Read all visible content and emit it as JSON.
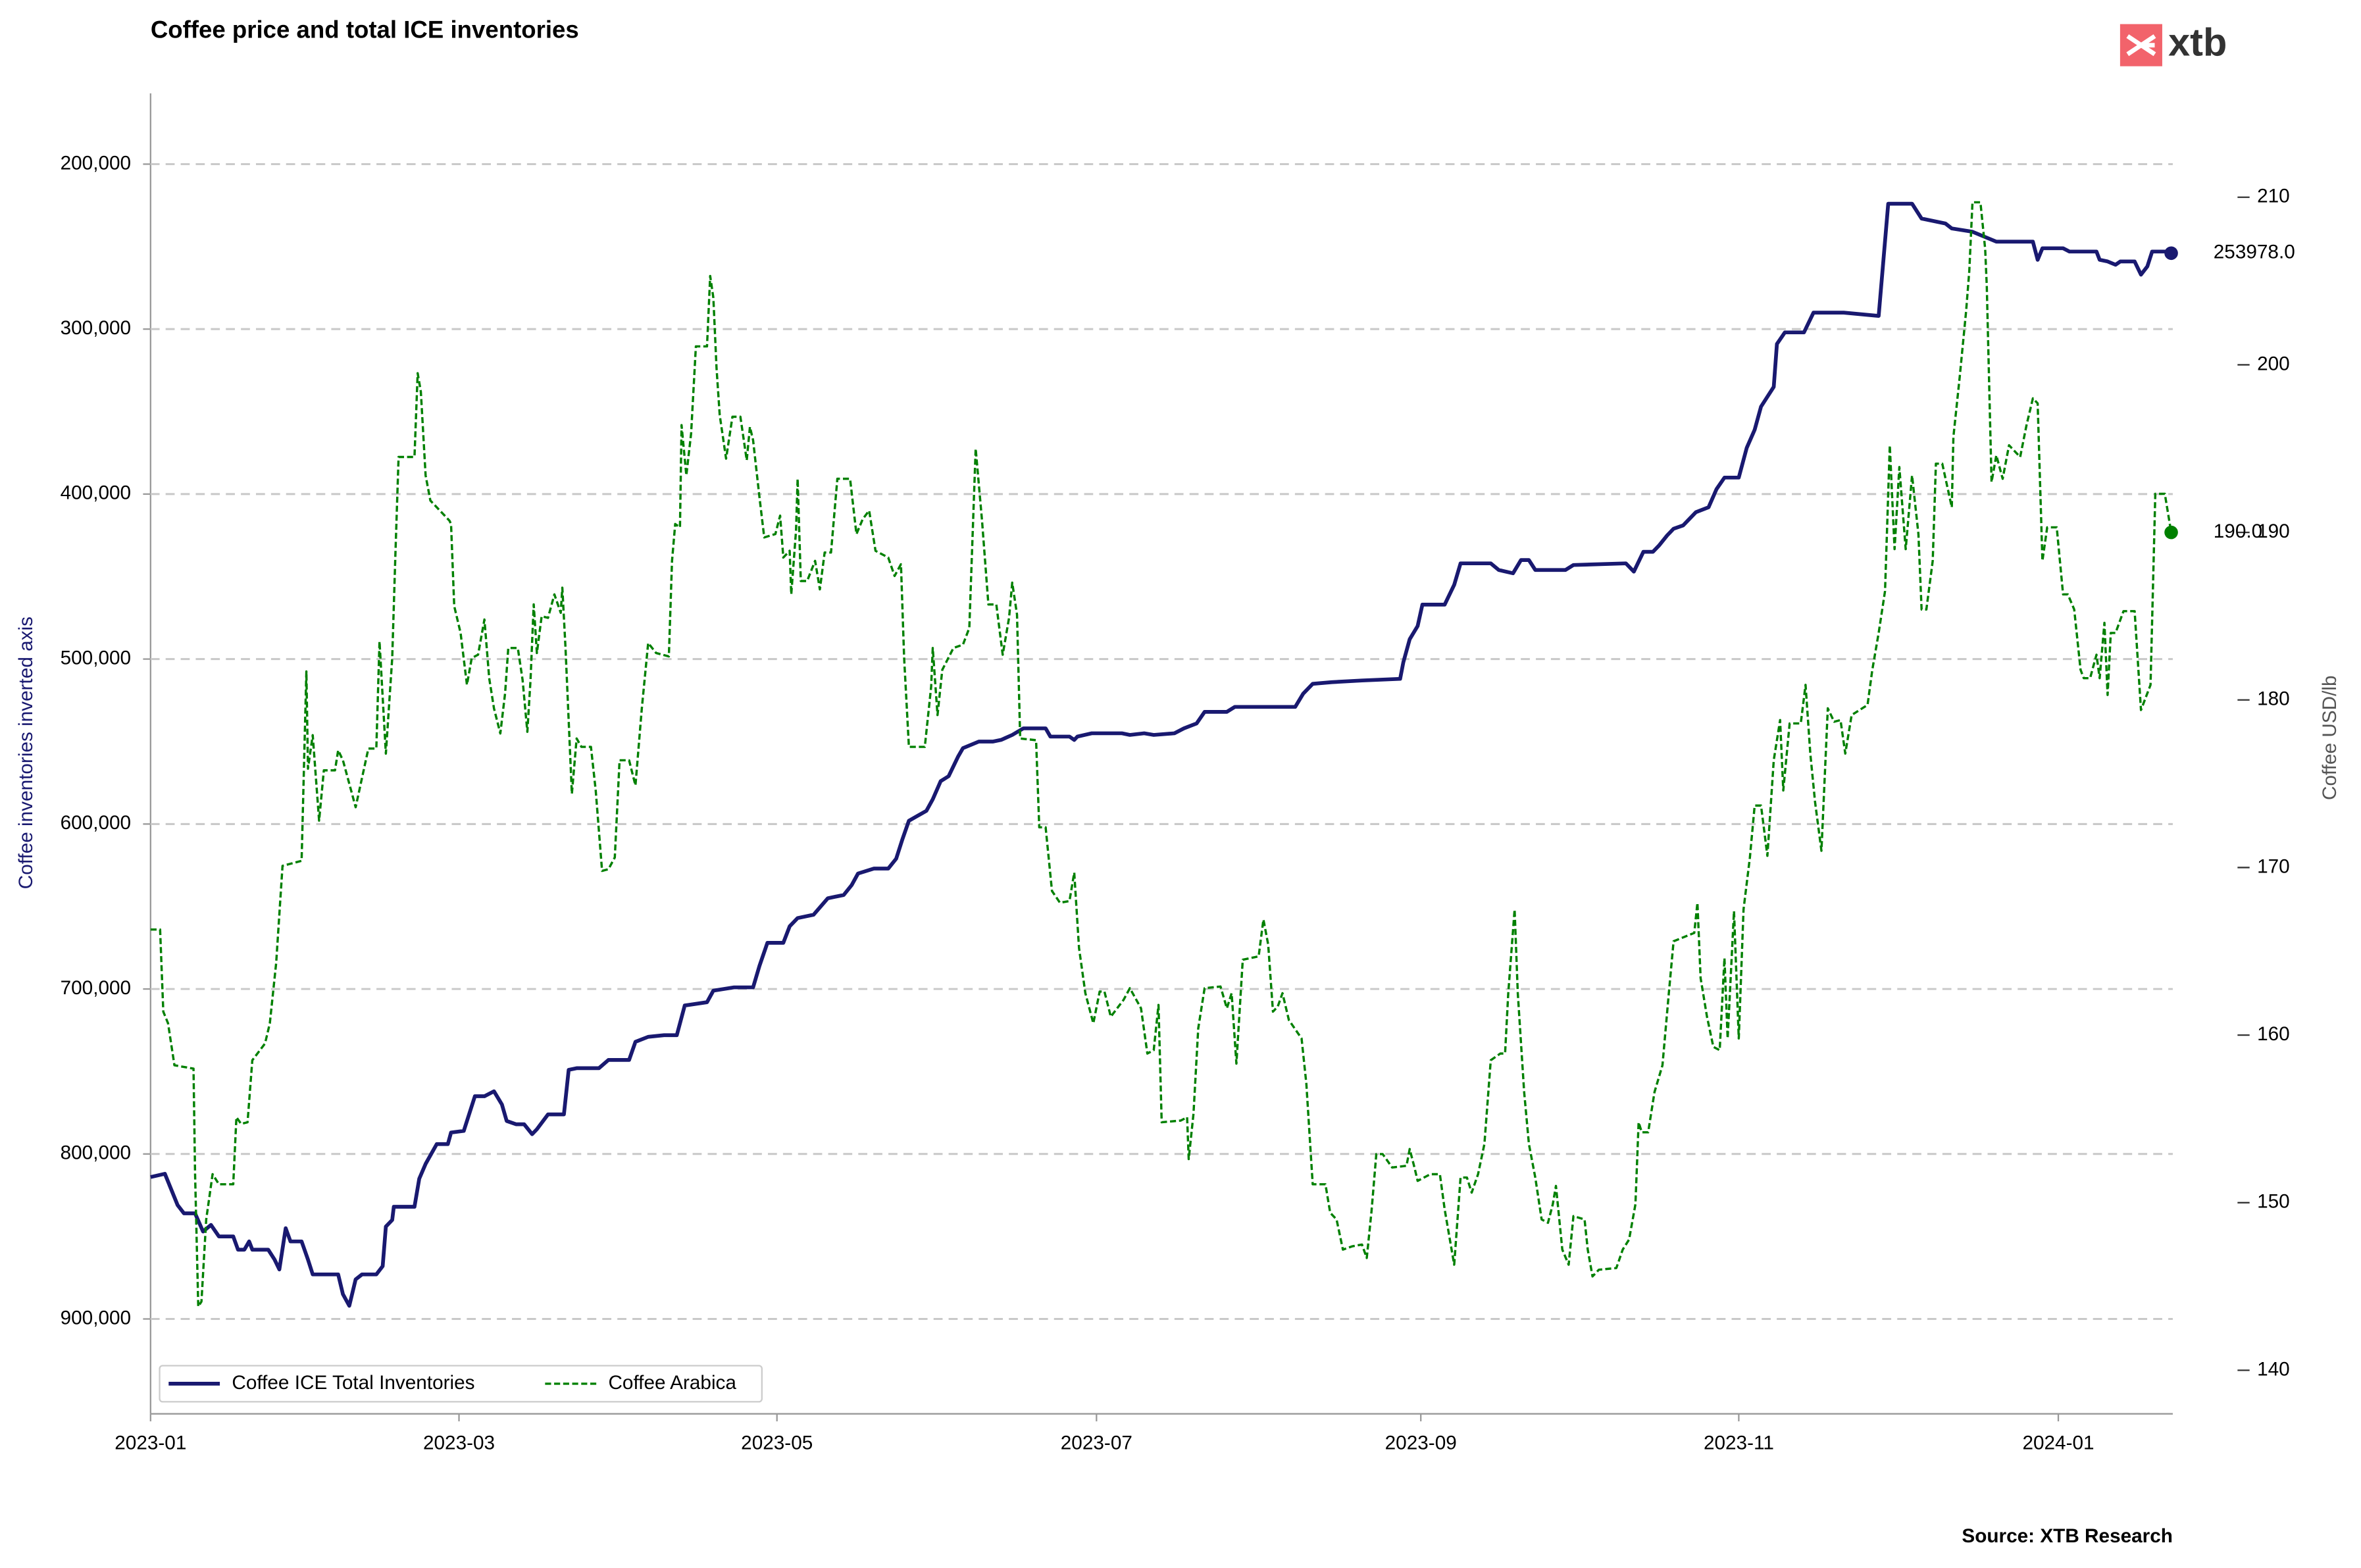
{
  "chart_data": {
    "type": "line",
    "title": "Coffee price and total ICE inventories",
    "logo": "xtb",
    "source": "Source: XTB Research",
    "ylabel": "Coffee inventories inverted axis",
    "y2label": "Coffee USD/lb",
    "xlim": [
      0,
      12.72
    ],
    "xticks": [
      {
        "value": 0,
        "label": "2023-01"
      },
      {
        "value": 1.94,
        "label": "2023-03"
      },
      {
        "value": 3.94,
        "label": "2023-05"
      },
      {
        "value": 5.95,
        "label": "2023-07"
      },
      {
        "value": 7.99,
        "label": "2023-09"
      },
      {
        "value": 9.99,
        "label": "2023-11"
      },
      {
        "value": 12,
        "label": "2024-01"
      }
    ],
    "ylim": [
      957500,
      157100
    ],
    "yticks": [
      {
        "value": 200000,
        "label": "200,000"
      },
      {
        "value": 300000,
        "label": "300,000"
      },
      {
        "value": 400000,
        "label": "400,000"
      },
      {
        "value": 500000,
        "label": "500,000"
      },
      {
        "value": 600000,
        "label": "600,000"
      },
      {
        "value": 700000,
        "label": "700,000"
      },
      {
        "value": 800000,
        "label": "800,000"
      },
      {
        "value": 900000,
        "label": "900,000"
      }
    ],
    "y2lim": [
      137.4,
      216.2
    ],
    "y2ticks": [
      140,
      150,
      160,
      170,
      180,
      190,
      200,
      210
    ],
    "grid": true,
    "legend": "lower left",
    "series": [
      {
        "name": "Coffee ICE Total Inventories",
        "color": "#191970",
        "axis": "y",
        "dashed": false,
        "end_label": "253978.0",
        "x": [
          0,
          0.09,
          0.17,
          0.21,
          0.28,
          0.33,
          0.38,
          0.43,
          0.52,
          0.55,
          0.59,
          0.62,
          0.64,
          0.74,
          0.78,
          0.81,
          0.85,
          0.88,
          0.95,
          0.99,
          1.02,
          1.18,
          1.21,
          1.25,
          1.29,
          1.33,
          1.42,
          1.46,
          1.48,
          1.52,
          1.53,
          1.66,
          1.69,
          1.73,
          1.8,
          1.87,
          1.89,
          1.97,
          2.04,
          2.1,
          2.16,
          2.21,
          2.24,
          2.3,
          2.35,
          2.4,
          2.43,
          2.5,
          2.6,
          2.63,
          2.68,
          2.82,
          2.88,
          3.01,
          3.05,
          3.13,
          3.23,
          3.31,
          3.36,
          3.5,
          3.54,
          3.67,
          3.79,
          3.83,
          3.88,
          3.98,
          4.02,
          4.07,
          4.17,
          4.26,
          4.36,
          4.41,
          4.45,
          4.55,
          4.64,
          4.69,
          4.73,
          4.77,
          4.88,
          4.92,
          4.97,
          5.02,
          5.08,
          5.11,
          5.21,
          5.3,
          5.35,
          5.42,
          5.49,
          5.63,
          5.66,
          5.78,
          5.81,
          5.83,
          5.92,
          6.11,
          6.16,
          6.25,
          6.31,
          6.44,
          6.5,
          6.58,
          6.63,
          6.77,
          6.82,
          7.2,
          7.25,
          7.31,
          7.43,
          7.62,
          7.86,
          7.88,
          7.92,
          7.97,
          8.0,
          8.14,
          8.2,
          8.24,
          8.43,
          8.48,
          8.57,
          8.62,
          8.67,
          8.71,
          8.9,
          8.95,
          9.28,
          9.33,
          9.39,
          9.45,
          9.49,
          9.54,
          9.58,
          9.64,
          9.68,
          9.72,
          9.8,
          9.85,
          9.9,
          9.99,
          10.04,
          10.09,
          10.13,
          10.21,
          10.23,
          10.28,
          10.4,
          10.46,
          10.65,
          10.87,
          10.93,
          11.08,
          11.14,
          11.29,
          11.33,
          11.46,
          11.61,
          11.84,
          11.87,
          11.9,
          12.03,
          12.07,
          12.24,
          12.26,
          12.31,
          12.36,
          12.39,
          12.48,
          12.52,
          12.56,
          12.59,
          12.67,
          12.71
        ],
        "values": [
          814000,
          812000,
          831000,
          836000,
          836000,
          847000,
          843000,
          850000,
          850000,
          858000,
          858000,
          853000,
          858000,
          858000,
          864000,
          870000,
          845000,
          853000,
          853000,
          864000,
          873000,
          873000,
          885000,
          892000,
          876000,
          873000,
          873000,
          868000,
          844000,
          840000,
          832000,
          832000,
          815000,
          806000,
          794000,
          794000,
          787000,
          786000,
          765000,
          765000,
          762000,
          770000,
          780000,
          782000,
          782000,
          788000,
          785000,
          776000,
          776000,
          749000,
          748000,
          748000,
          743000,
          743000,
          732000,
          729000,
          728000,
          728000,
          710000,
          708000,
          701000,
          699000,
          699000,
          686000,
          672000,
          672000,
          662000,
          657000,
          655000,
          645000,
          643000,
          637000,
          630000,
          627000,
          627000,
          621000,
          609000,
          598000,
          592000,
          585000,
          574000,
          571000,
          559000,
          554000,
          550000,
          550000,
          549000,
          546000,
          542000,
          542000,
          547000,
          547000,
          549000,
          547000,
          545000,
          545000,
          546000,
          545000,
          546000,
          545000,
          542000,
          539000,
          532000,
          532000,
          529000,
          529000,
          521000,
          515000,
          514000,
          513000,
          512000,
          502000,
          488000,
          480000,
          467000,
          467000,
          455000,
          442000,
          442000,
          446000,
          448000,
          440000,
          440000,
          446000,
          446000,
          443000,
          442000,
          447000,
          435000,
          435000,
          431000,
          425000,
          421000,
          419000,
          415000,
          411000,
          408000,
          397000,
          390000,
          390000,
          372000,
          361000,
          347000,
          335000,
          309000,
          302000,
          302000,
          290000,
          290000,
          292000,
          224000,
          224000,
          233000,
          236000,
          239000,
          241000,
          247000,
          247000,
          258000,
          251000,
          251000,
          253000,
          253000,
          258000,
          259000,
          261000,
          259000,
          259000,
          267000,
          262000,
          253000,
          253000,
          253978
        ]
      },
      {
        "name": "Coffee Arabica",
        "color": "#008000",
        "axis": "y2",
        "dashed": true,
        "end_label": "190.0",
        "x": [
          0,
          0.06,
          0.08,
          0.11,
          0.15,
          0.27,
          0.28,
          0.3,
          0.32,
          0.35,
          0.39,
          0.43,
          0.52,
          0.54,
          0.57,
          0.61,
          0.64,
          0.72,
          0.75,
          0.79,
          0.83,
          0.95,
          0.98,
          0.99,
          1.02,
          1.06,
          1.09,
          1.16,
          1.18,
          1.21,
          1.29,
          1.37,
          1.42,
          1.44,
          1.48,
          1.52,
          1.54,
          1.56,
          1.66,
          1.68,
          1.7,
          1.73,
          1.76,
          1.88,
          1.89,
          1.91,
          1.95,
          1.99,
          2.02,
          2.06,
          2.1,
          2.13,
          2.16,
          2.2,
          2.23,
          2.25,
          2.31,
          2.34,
          2.37,
          2.39,
          2.41,
          2.43,
          2.46,
          2.5,
          2.54,
          2.58,
          2.59,
          2.61,
          2.65,
          2.68,
          2.71,
          2.77,
          2.8,
          2.84,
          2.88,
          2.92,
          2.95,
          3.01,
          3.05,
          3.09,
          3.13,
          3.18,
          3.26,
          3.28,
          3.3,
          3.33,
          3.34,
          3.37,
          3.4,
          3.43,
          3.5,
          3.52,
          3.54,
          3.56,
          3.58,
          3.62,
          3.66,
          3.71,
          3.75,
          3.77,
          3.79,
          3.83,
          3.86,
          3.93,
          3.96,
          3.98,
          4.02,
          4.03,
          4.06,
          4.07,
          4.09,
          4.13,
          4.18,
          4.21,
          4.24,
          4.28,
          4.32,
          4.4,
          4.44,
          4.48,
          4.52,
          4.56,
          4.64,
          4.68,
          4.72,
          4.74,
          4.77,
          4.87,
          4.91,
          4.92,
          4.95,
          4.98,
          5.05,
          5.11,
          5.15,
          5.19,
          5.23,
          5.27,
          5.32,
          5.36,
          5.4,
          5.42,
          5.45,
          5.47,
          5.57,
          5.59,
          5.63,
          5.67,
          5.72,
          5.78,
          5.81,
          5.84,
          5.88,
          5.93,
          5.97,
          6.0,
          6.04,
          6.12,
          6.16,
          6.23,
          6.27,
          6.31,
          6.34,
          6.36,
          6.48,
          6.52,
          6.53,
          6.56,
          6.59,
          6.63,
          6.73,
          6.77,
          6.8,
          6.83,
          6.87,
          6.97,
          7.0,
          7.03,
          7.06,
          7.09,
          7.12,
          7.16,
          7.24,
          7.27,
          7.31,
          7.39,
          7.42,
          7.46,
          7.5,
          7.56,
          7.62,
          7.65,
          7.68,
          7.71,
          7.75,
          7.81,
          7.9,
          7.92,
          7.95,
          7.97,
          8.05,
          8.11,
          8.14,
          8.18,
          8.2,
          8.24,
          8.28,
          8.31,
          8.35,
          8.39,
          8.43,
          8.49,
          8.52,
          8.54,
          8.58,
          8.6,
          8.64,
          8.67,
          8.71,
          8.75,
          8.79,
          8.82,
          8.84,
          8.88,
          8.92,
          8.95,
          9.02,
          9.04,
          9.07,
          9.11,
          9.22,
          9.26,
          9.3,
          9.34,
          9.36,
          9.38,
          9.42,
          9.46,
          9.51,
          9.55,
          9.58,
          9.71,
          9.73,
          9.75,
          9.79,
          9.83,
          9.87,
          9.9,
          9.92,
          9.96,
          9.99,
          10.02,
          10.06,
          10.09,
          10.13,
          10.17,
          10.21,
          10.25,
          10.27,
          10.31,
          10.38,
          10.41,
          10.44,
          10.47,
          10.51,
          10.55,
          10.59,
          10.63,
          10.66,
          10.7,
          10.8,
          10.83,
          10.87,
          10.91,
          10.94,
          10.97,
          11.0,
          11.04,
          11.08,
          11.12,
          11.14,
          11.17,
          11.21,
          11.23,
          11.27,
          11.33,
          11.34,
          11.38,
          11.42,
          11.44,
          11.46,
          11.51,
          11.54,
          11.55,
          11.58,
          11.61,
          11.65,
          11.69,
          11.76,
          11.8,
          11.84,
          11.87,
          11.9,
          11.93,
          11.99,
          12.03,
          12.06,
          12.1,
          12.14,
          12.16,
          12.2,
          12.24,
          12.26,
          12.29,
          12.31,
          12.33,
          12.36,
          12.41,
          12.48,
          12.52,
          12.58,
          12.61,
          12.67,
          12.71
        ],
        "values": [
          166.3,
          166.3,
          161.4,
          160.7,
          158.2,
          158.0,
          151.7,
          143.8,
          144.1,
          149.0,
          151.7,
          151.1,
          151.1,
          155.1,
          154.7,
          154.8,
          158.5,
          159.5,
          160.7,
          164.3,
          170.1,
          170.4,
          181.7,
          175.9,
          177.9,
          172.8,
          175.8,
          175.8,
          177.0,
          176.4,
          173.6,
          177.1,
          177.1,
          183.5,
          176.8,
          182.5,
          188.7,
          194.5,
          194.5,
          199.5,
          198.4,
          193.4,
          191.9,
          190.7,
          190.5,
          185.6,
          184.0,
          180.9,
          182.5,
          182.7,
          184.8,
          181.3,
          179.5,
          178.0,
          180.4,
          183.1,
          183.1,
          181.2,
          178.1,
          181.2,
          185.7,
          182.8,
          185.0,
          184.9,
          186.3,
          185.2,
          186.7,
          183.1,
          174.4,
          177.7,
          177.2,
          177.2,
          174.6,
          169.8,
          169.9,
          170.6,
          176.4,
          176.4,
          174.9,
          179.5,
          183.4,
          182.8,
          182.6,
          188.3,
          190.5,
          190.3,
          196.4,
          193.4,
          195.9,
          201.1,
          201.1,
          205.3,
          204.0,
          199.8,
          197.0,
          194.4,
          196.9,
          196.9,
          194.3,
          196.3,
          195.5,
          192.1,
          189.7,
          189.9,
          191.0,
          188.5,
          188.9,
          186.3,
          190.1,
          193.2,
          187.1,
          187.1,
          188.3,
          186.6,
          188.8,
          188.8,
          193.2,
          193.2,
          189.9,
          190.8,
          191.3,
          188.9,
          188.5,
          187.4,
          188.1,
          182.5,
          177.2,
          177.2,
          180.8,
          183.1,
          179.1,
          181.8,
          183.1,
          183.3,
          184.3,
          195.0,
          190.7,
          185.7,
          185.7,
          182.7,
          184.9,
          187.0,
          185.1,
          177.7,
          177.6,
          172.4,
          172.4,
          168.6,
          167.9,
          168.0,
          169.7,
          165.2,
          162.5,
          160.7,
          162.6,
          162.6,
          161.1,
          162.1,
          162.8,
          161.6,
          158.9,
          159.1,
          161.8,
          154.8,
          154.9,
          155.1,
          152.6,
          155.3,
          160.4,
          162.8,
          162.9,
          161.6,
          162.5,
          158.3,
          164.5,
          164.7,
          166.9,
          165.4,
          161.4,
          161.7,
          162.5,
          160.9,
          159.8,
          157.1,
          151.1,
          151.1,
          149.4,
          149.0,
          147.2,
          147.4,
          147.5,
          146.7,
          149.5,
          152.9,
          152.9,
          152.1,
          152.2,
          153.2,
          152.1,
          151.3,
          151.7,
          151.7,
          149.6,
          147.4,
          146.3,
          151.5,
          151.5,
          150.6,
          151.7,
          153.5,
          158.5,
          158.9,
          158.9,
          162.5,
          167.5,
          162.5,
          156.6,
          153.5,
          151.5,
          149.0,
          148.8,
          149.9,
          151.0,
          147.2,
          146.3,
          149.2,
          149.0,
          147.2,
          145.6,
          146.0,
          146.1,
          147.2,
          147.8,
          149.9,
          154.8,
          154.2,
          154.2,
          156.6,
          158.2,
          162.5,
          165.6,
          166.1,
          167.9,
          163.4,
          161.1,
          159.3,
          159.1,
          164.6,
          159.8,
          167.4,
          159.8,
          167.5,
          170.6,
          173.7,
          173.7,
          170.7,
          176.4,
          178.8,
          174.6,
          178.6,
          178.6,
          180.9,
          176.8,
          173.9,
          171.0,
          179.5,
          178.7,
          178.8,
          176.8,
          179.1,
          179.7,
          181.8,
          184.0,
          186.5,
          195.2,
          189.0,
          193.9,
          189.0,
          193.4,
          189.9,
          185.4,
          185.4,
          188.3,
          194.1,
          194.1,
          191.5,
          195.7,
          199.3,
          203.2,
          205.6,
          209.7,
          209.7,
          206.9,
          204.7,
          193.0,
          194.6,
          193.2,
          195.2,
          194.5,
          196.4,
          198.0,
          197.7,
          188.3,
          190.3,
          190.3,
          186.3,
          186.3,
          185.4,
          181.8,
          181.3,
          181.3,
          182.7,
          181.3,
          184.6,
          180.3,
          184.0,
          184.0,
          185.3,
          185.3,
          179.4,
          180.9,
          192.3,
          192.3,
          190.0
        ]
      }
    ]
  }
}
